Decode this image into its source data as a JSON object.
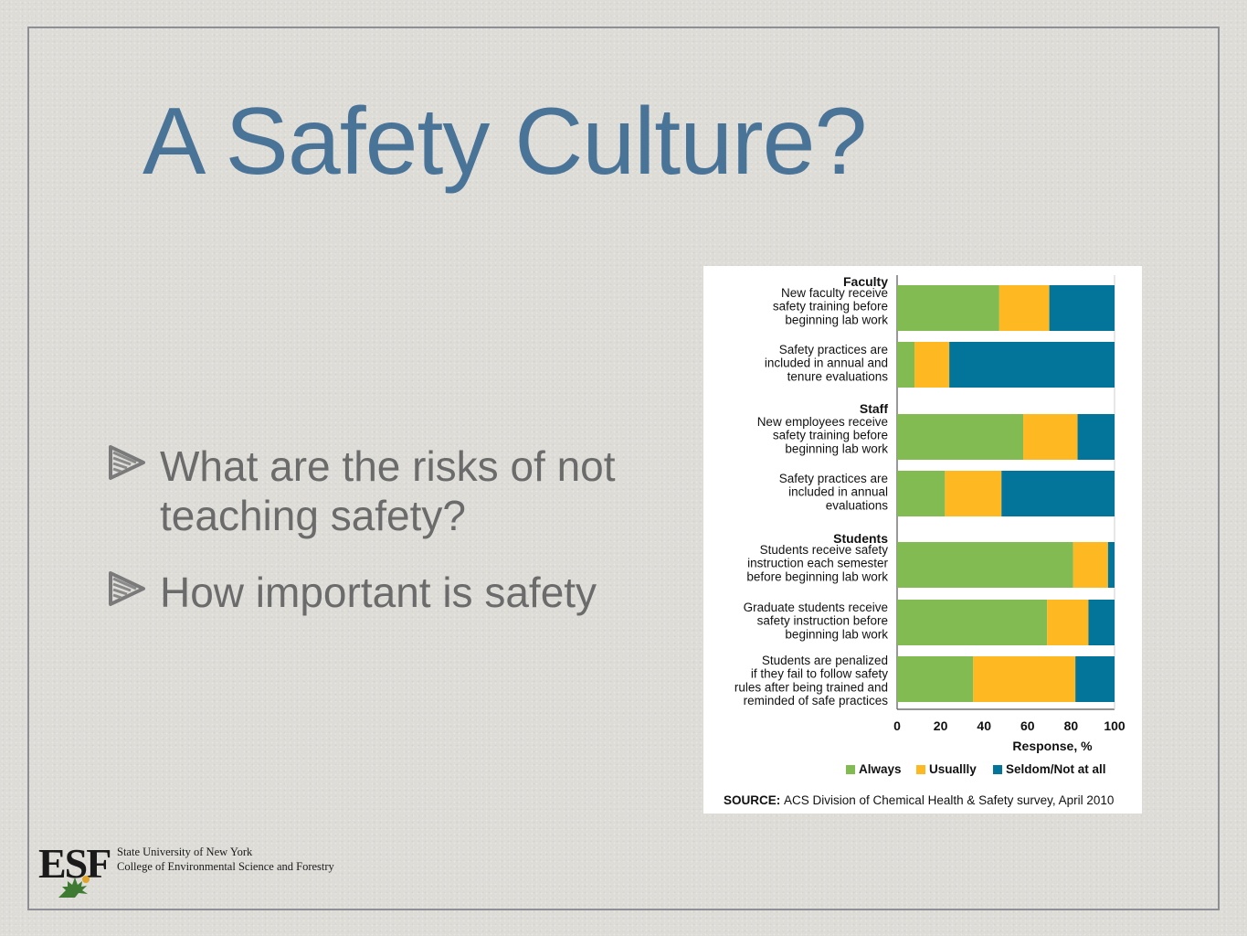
{
  "slide": {
    "title": "A Safety Culture?",
    "bullets": [
      "What are the risks of not teaching safety?",
      "How important is safety"
    ]
  },
  "logo": {
    "text": "ESF",
    "line1": "State University of New York",
    "line2": "College of Environmental Science and Forestry"
  },
  "chart_data": {
    "type": "bar",
    "orientation": "horizontal",
    "stacked": true,
    "groups": [
      {
        "name": "Faculty",
        "items": [
          {
            "label": [
              "New faculty receive",
              "safety training before",
              "beginning lab work"
            ],
            "values": [
              47,
              23,
              30
            ]
          },
          {
            "label": [
              "Safety practices are",
              "included in annual and",
              "tenure evaluations"
            ],
            "values": [
              8,
              16,
              76
            ]
          }
        ]
      },
      {
        "name": "Staff",
        "items": [
          {
            "label": [
              "New employees receive",
              "safety training before",
              "beginning lab work"
            ],
            "values": [
              58,
              25,
              17
            ]
          },
          {
            "label": [
              "Safety practices are",
              "included in annual",
              "evaluations"
            ],
            "values": [
              22,
              26,
              52
            ]
          }
        ]
      },
      {
        "name": "Students",
        "items": [
          {
            "label": [
              "Students receive safety",
              "instruction each semester",
              "before beginning lab work"
            ],
            "values": [
              81,
              16,
              3
            ]
          },
          {
            "label": [
              "Graduate students receive",
              "safety instruction before",
              "beginning lab work"
            ],
            "values": [
              69,
              19,
              12
            ]
          },
          {
            "label": [
              "Students are penalized",
              "if they fail to follow safety",
              "rules after being trained and",
              "reminded of safe practices"
            ],
            "values": [
              35,
              47,
              18
            ]
          }
        ]
      }
    ],
    "series": [
      {
        "name": "Always",
        "color": "#82bb52"
      },
      {
        "name": "Usuallly",
        "color": "#fdb822"
      },
      {
        "name": "Seldom/Not at all",
        "color": "#04759a"
      }
    ],
    "xlabel": "Response, %",
    "xticks": [
      "0",
      "20",
      "40",
      "60",
      "80",
      "100"
    ],
    "xlim": [
      0,
      100
    ],
    "legend_position": "bottom",
    "source_label": "SOURCE:",
    "source_text": "ACS Division of Chemical Health & Safety survey, April 2010"
  }
}
